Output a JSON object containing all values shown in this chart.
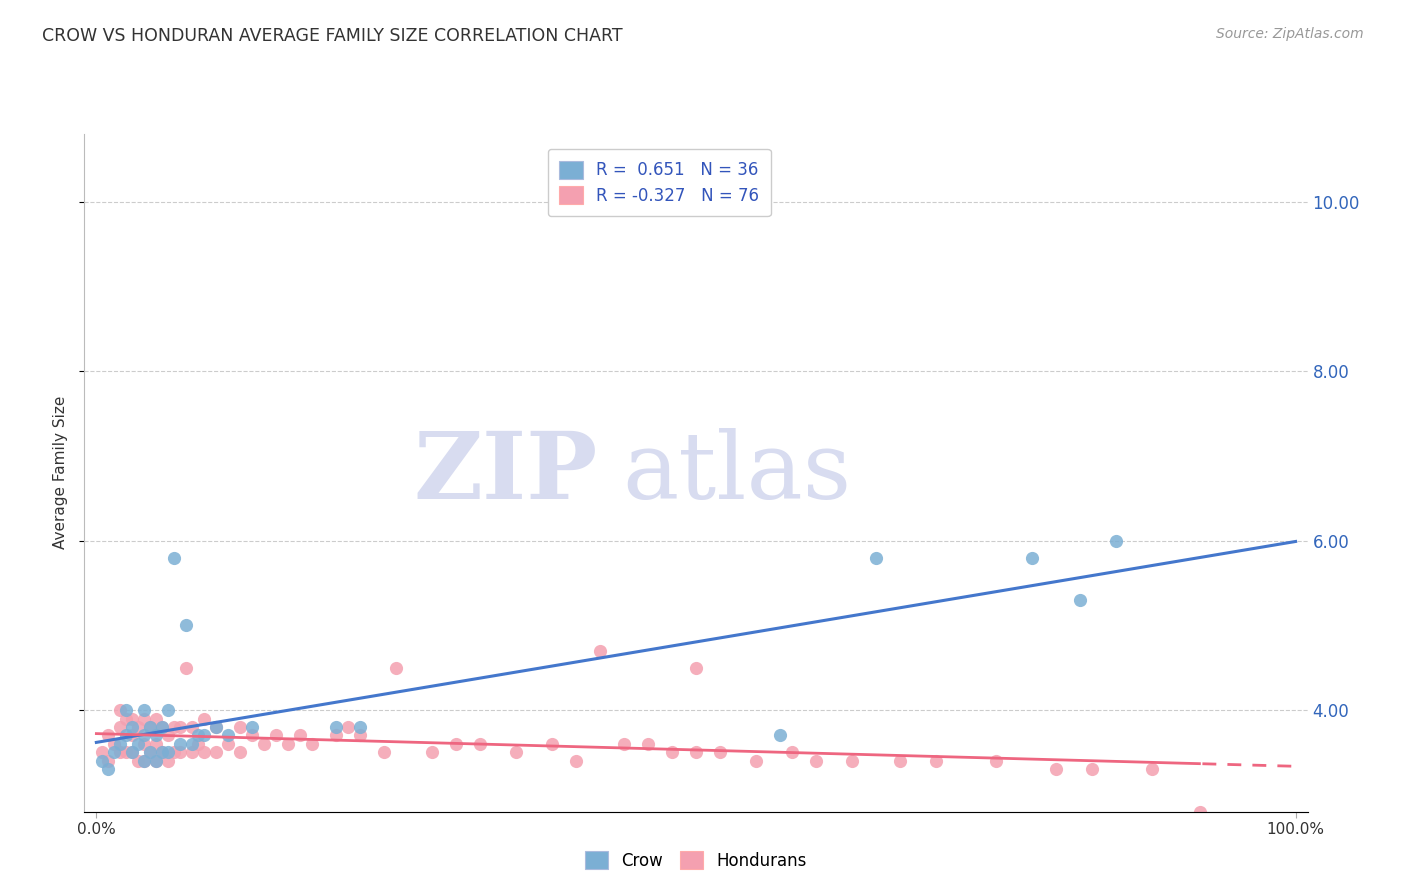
{
  "title": "CROW VS HONDURAN AVERAGE FAMILY SIZE CORRELATION CHART",
  "source": "Source: ZipAtlas.com",
  "ylabel": "Average Family Size",
  "crow_R": 0.651,
  "crow_N": 36,
  "honduran_R": -0.327,
  "honduran_N": 76,
  "ylim_min": 2.8,
  "ylim_max": 10.8,
  "xlim_min": -0.01,
  "xlim_max": 1.01,
  "crow_color": "#7BAFD4",
  "honduran_color": "#F4A0B0",
  "crow_line_color": "#4477CC",
  "honduran_line_color": "#EE6680",
  "watermark_zip": "ZIP",
  "watermark_atlas": "atlas",
  "ytick_values": [
    4.0,
    6.0,
    8.0,
    10.0
  ],
  "ytick_labels": [
    "4.00",
    "6.00",
    "8.00",
    "10.00"
  ],
  "background_color": "#FFFFFF",
  "grid_color": "#CCCCCC",
  "crow_scatter_x": [
    0.005,
    0.01,
    0.015,
    0.02,
    0.025,
    0.025,
    0.03,
    0.03,
    0.035,
    0.04,
    0.04,
    0.04,
    0.045,
    0.045,
    0.05,
    0.05,
    0.055,
    0.055,
    0.06,
    0.06,
    0.065,
    0.07,
    0.075,
    0.08,
    0.085,
    0.09,
    0.1,
    0.11,
    0.13,
    0.2,
    0.22,
    0.57,
    0.65,
    0.78,
    0.82,
    0.85
  ],
  "crow_scatter_y": [
    3.4,
    3.3,
    3.5,
    3.6,
    3.7,
    4.0,
    3.5,
    3.8,
    3.6,
    3.4,
    3.7,
    4.0,
    3.5,
    3.8,
    3.4,
    3.7,
    3.5,
    3.8,
    3.5,
    4.0,
    5.8,
    3.6,
    5.0,
    3.6,
    3.7,
    3.7,
    3.8,
    3.7,
    3.8,
    3.8,
    3.8,
    3.7,
    5.8,
    5.8,
    5.3,
    6.0
  ],
  "honduran_scatter_x": [
    0.005,
    0.01,
    0.01,
    0.015,
    0.02,
    0.02,
    0.02,
    0.025,
    0.025,
    0.03,
    0.03,
    0.03,
    0.035,
    0.035,
    0.04,
    0.04,
    0.04,
    0.045,
    0.045,
    0.05,
    0.05,
    0.05,
    0.055,
    0.055,
    0.06,
    0.06,
    0.065,
    0.065,
    0.07,
    0.07,
    0.075,
    0.08,
    0.08,
    0.085,
    0.09,
    0.09,
    0.1,
    0.1,
    0.11,
    0.12,
    0.12,
    0.13,
    0.14,
    0.15,
    0.16,
    0.17,
    0.18,
    0.2,
    0.21,
    0.22,
    0.24,
    0.25,
    0.28,
    0.3,
    0.32,
    0.35,
    0.38,
    0.4,
    0.42,
    0.44,
    0.48,
    0.5,
    0.52,
    0.55,
    0.58,
    0.6,
    0.63,
    0.67,
    0.7,
    0.75,
    0.8,
    0.83,
    0.88,
    0.92,
    0.5,
    0.46
  ],
  "honduran_scatter_y": [
    3.5,
    3.4,
    3.7,
    3.6,
    3.5,
    3.8,
    4.0,
    3.5,
    3.9,
    3.5,
    3.7,
    3.9,
    3.4,
    3.8,
    3.4,
    3.6,
    3.9,
    3.5,
    3.8,
    3.4,
    3.6,
    3.9,
    3.5,
    3.8,
    3.4,
    3.7,
    3.5,
    3.8,
    3.5,
    3.8,
    4.5,
    3.5,
    3.8,
    3.6,
    3.5,
    3.9,
    3.5,
    3.8,
    3.6,
    3.5,
    3.8,
    3.7,
    3.6,
    3.7,
    3.6,
    3.7,
    3.6,
    3.7,
    3.8,
    3.7,
    3.5,
    4.5,
    3.5,
    3.6,
    3.6,
    3.5,
    3.6,
    3.4,
    4.7,
    3.6,
    3.5,
    3.5,
    3.5,
    3.4,
    3.5,
    3.4,
    3.4,
    3.4,
    3.4,
    3.4,
    3.3,
    3.3,
    3.3,
    2.8,
    4.5,
    3.6
  ]
}
